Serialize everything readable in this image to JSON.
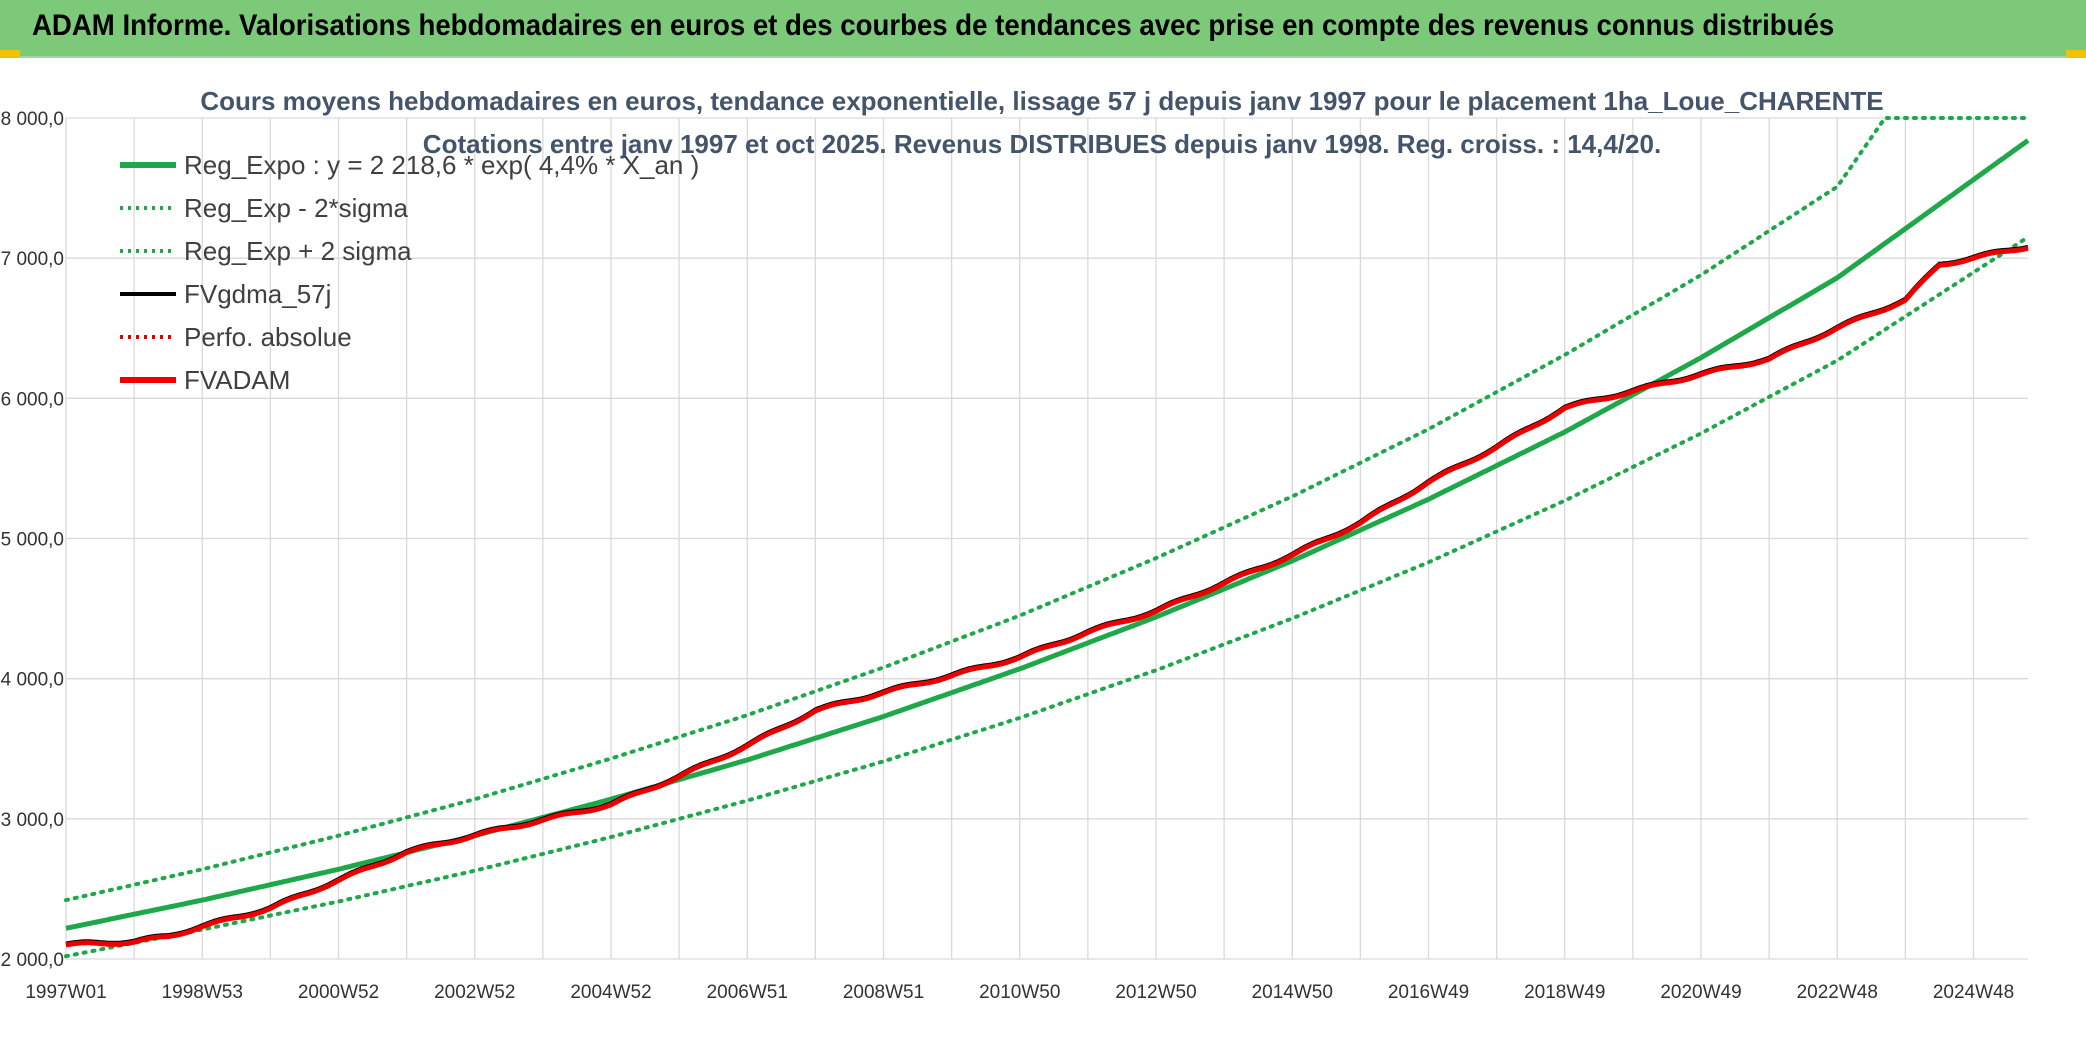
{
  "banner": {
    "title": "ADAM Informe. Valorisations hebdomadaires en euros et des courbes de tendances avec prise en compte des revenus connus distribués"
  },
  "colors": {
    "banner": "#7dc97a",
    "regression": "#1fa84a",
    "band": "#1fa84a",
    "fvgdma": "#000000",
    "perfo": "#e00000",
    "fvadam": "#ee0000"
  },
  "chart_data": {
    "type": "line",
    "title": "Cours moyens hebdomadaires en euros, tendance exponentielle, lissage 57 j depuis janv 1997 pour le placement 1ha_Loue_CHARENTE",
    "subtitle": "Cotations entre janv 1997 et oct 2025. Revenus DISTRIBUES depuis janv 1998. Reg. croiss. : 14,4/20.",
    "xlabel": "",
    "ylabel": "",
    "x_ticks": [
      "1997W01",
      "1998W53",
      "2000W52",
      "2002W52",
      "2004W52",
      "2006W51",
      "2008W51",
      "2010W50",
      "2012W50",
      "2014W50",
      "2016W49",
      "2018W49",
      "2020W49",
      "2022W48",
      "2024W48"
    ],
    "x_range": [
      1997.0,
      2025.8
    ],
    "y_ticks": [
      "2 000,0",
      "3 000,0",
      "4 000,0",
      "5 000,0",
      "6 000,0",
      "7 000,0",
      "8 000,0"
    ],
    "y_values": [
      2000,
      3000,
      4000,
      5000,
      6000,
      7000,
      8000
    ],
    "ylim": [
      2000,
      8000
    ],
    "grid": true,
    "legend_position": "top-left",
    "legend": [
      {
        "label": "Reg_Expo : y = 2 218,6 * exp( 4,4% *  X_an )",
        "style": "solid-thick",
        "color": "#1fa84a"
      },
      {
        "label": "Reg_Exp - 2*sigma",
        "style": "dotted",
        "color": "#1fa84a"
      },
      {
        "label": "Reg_Exp + 2 sigma",
        "style": "dotted",
        "color": "#1fa84a"
      },
      {
        "label": "FVgdma_57j",
        "style": "solid",
        "color": "#000000"
      },
      {
        "label": "Perfo. absolue",
        "style": "dotted",
        "color": "#e00000"
      },
      {
        "label": "FVADAM",
        "style": "solid-thick",
        "color": "#ee0000"
      }
    ],
    "series": [
      {
        "name": "Reg_Expo : y = 2 218,6 * exp( 4,4% *  X_an )",
        "x": [
          1997,
          1999,
          2001,
          2003,
          2005,
          2007,
          2009,
          2011,
          2013,
          2015,
          2017,
          2019,
          2021,
          2023,
          2025.8
        ],
        "values": [
          2219,
          2420,
          2640,
          2880,
          3140,
          3420,
          3730,
          4070,
          4440,
          4840,
          5280,
          5760,
          6290,
          6860,
          7840
        ]
      },
      {
        "name": "Reg_Exp - 2*sigma",
        "x": [
          1997,
          1999,
          2001,
          2003,
          2005,
          2007,
          2009,
          2011,
          2013,
          2015,
          2017,
          2019,
          2021,
          2023,
          2025.8
        ],
        "values": [
          2020,
          2210,
          2410,
          2630,
          2870,
          3130,
          3410,
          3720,
          4060,
          4430,
          4830,
          5270,
          5750,
          6270,
          7150
        ]
      },
      {
        "name": "Reg_Exp + 2 sigma",
        "x": [
          1997,
          1999,
          2001,
          2003,
          2005,
          2007,
          2009,
          2011,
          2013,
          2015,
          2017,
          2019,
          2021,
          2023,
          2023.7,
          2025.8
        ],
        "values": [
          2420,
          2640,
          2880,
          3140,
          3430,
          3740,
          4080,
          4450,
          4860,
          5300,
          5780,
          6310,
          6880,
          7510,
          8000,
          8000
        ]
      },
      {
        "name": "FVADAM",
        "x": [
          1997,
          1998,
          1998.5,
          1999,
          2000,
          2001,
          2002,
          2003,
          2004,
          2005,
          2006,
          2007,
          2008,
          2009,
          2010,
          2011,
          2012,
          2013,
          2014,
          2015,
          2016,
          2017,
          2018,
          2019,
          2020,
          2021,
          2022,
          2023,
          2024,
          2024.5,
          2025.8
        ],
        "values": [
          2100,
          2120,
          2160,
          2230,
          2360,
          2560,
          2760,
          2880,
          2990,
          3100,
          3300,
          3520,
          3770,
          3900,
          4020,
          4150,
          4330,
          4480,
          4680,
          4880,
          5110,
          5400,
          5650,
          5930,
          6050,
          6170,
          6280,
          6500,
          6700,
          6950,
          7080
        ]
      }
    ]
  }
}
